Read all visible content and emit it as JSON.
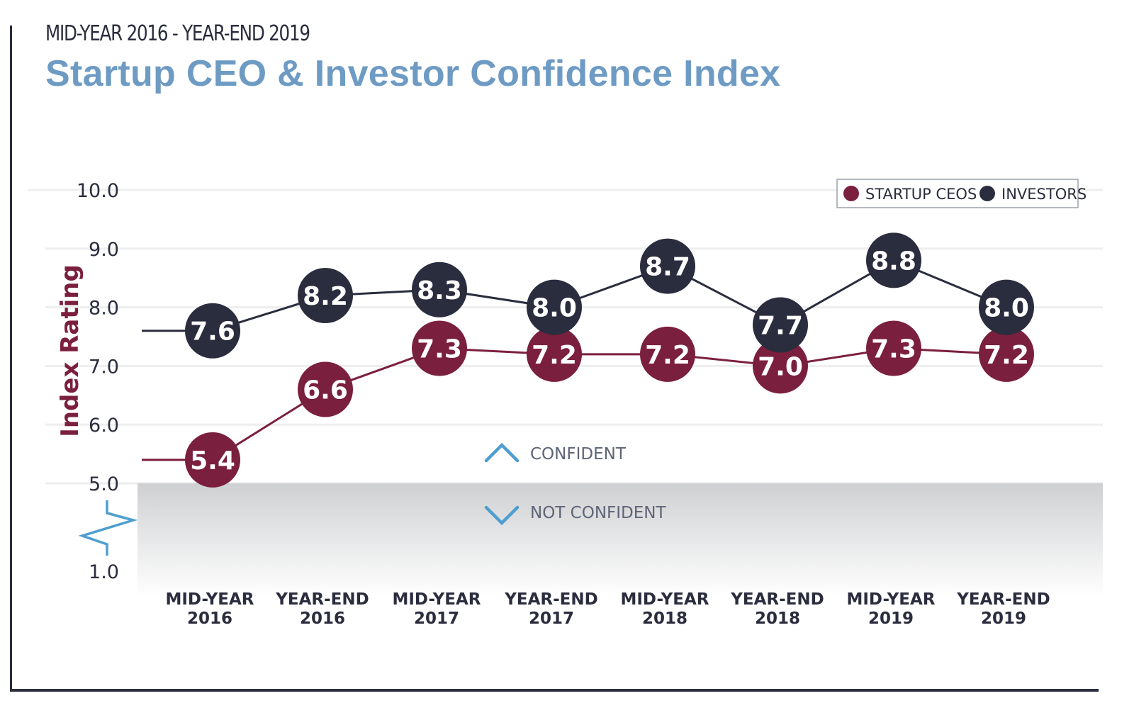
{
  "header": {
    "subtitle": "MID-YEAR 2016 - YEAR-END 2019",
    "title": "Startup CEO & Investor Confidence Index"
  },
  "chart_data": {
    "type": "line",
    "title": "Startup CEO & Investor Confidence Index",
    "subtitle": "MID-YEAR 2016 - YEAR-END 2019",
    "xlabel": "",
    "ylabel": "Index Rating",
    "ylim": [
      1.0,
      10.0
    ],
    "y_axis_break": "between 1.0 and 5.0",
    "yticks": [
      "10.0",
      "9.0",
      "8.0",
      "7.0",
      "6.0",
      "5.0",
      "1.0"
    ],
    "grid": true,
    "legend_position": "top-right",
    "categories": [
      [
        "MID-YEAR",
        "2016"
      ],
      [
        "YEAR-END",
        "2016"
      ],
      [
        "MID-YEAR",
        "2017"
      ],
      [
        "YEAR-END",
        "2017"
      ],
      [
        "MID-YEAR",
        "2018"
      ],
      [
        "YEAR-END",
        "2018"
      ],
      [
        "MID-YEAR",
        "2019"
      ],
      [
        "YEAR-END",
        "2019"
      ]
    ],
    "series": [
      {
        "name": "STARTUP CEOS",
        "color": "#7b1f3e",
        "values": [
          5.4,
          6.6,
          7.3,
          7.2,
          7.2,
          7.0,
          7.3,
          7.2
        ]
      },
      {
        "name": "INVESTORS",
        "color": "#2a2d3e",
        "values": [
          7.6,
          8.2,
          8.3,
          8.0,
          8.7,
          7.7,
          8.8,
          8.0
        ]
      }
    ],
    "annotations": {
      "confident": "CONFIDENT",
      "not_confident": "NOT CONFIDENT",
      "threshold": 5.0,
      "accent_color": "#4e9fcf"
    }
  }
}
